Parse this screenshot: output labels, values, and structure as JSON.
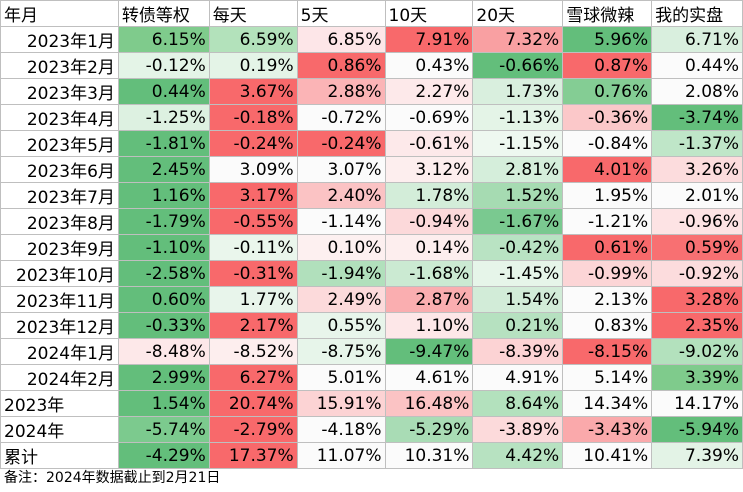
{
  "header": [
    "年月",
    "转债等权",
    "每天",
    "5天",
    "10天",
    "20天",
    "雪球微辣",
    "我的实盘"
  ],
  "rows": [
    {
      "label": "2023年1月",
      "align": "right",
      "cells": [
        {
          "v": "6.15%",
          "c": "#7fcb8c"
        },
        {
          "v": "6.59%",
          "c": "#b3e2bb"
        },
        {
          "v": "6.85%",
          "c": "#fde6e8"
        },
        {
          "v": "7.91%",
          "c": "#f8696b"
        },
        {
          "v": "7.32%",
          "c": "#f9a0a2"
        },
        {
          "v": "5.96%",
          "c": "#63be7b"
        },
        {
          "v": "6.71%",
          "c": "#d9efde"
        }
      ]
    },
    {
      "label": "2023年2月",
      "align": "right",
      "cells": [
        {
          "v": "-0.12%",
          "c": "#e4f4e7"
        },
        {
          "v": "0.19%",
          "c": "#e4f4e7"
        },
        {
          "v": "0.86%",
          "c": "#f8696b"
        },
        {
          "v": "0.43%",
          "c": "#fbfbfb"
        },
        {
          "v": "-0.66%",
          "c": "#63be7b"
        },
        {
          "v": "0.87%",
          "c": "#f8696b"
        },
        {
          "v": "0.44%",
          "c": "#fbfbfb"
        }
      ]
    },
    {
      "label": "2023年3月",
      "align": "right",
      "cells": [
        {
          "v": "0.44%",
          "c": "#63be7b"
        },
        {
          "v": "3.67%",
          "c": "#f8696b"
        },
        {
          "v": "2.88%",
          "c": "#fbb4b6"
        },
        {
          "v": "2.27%",
          "c": "#fde9ea"
        },
        {
          "v": "1.73%",
          "c": "#d9efde"
        },
        {
          "v": "0.76%",
          "c": "#84cd94"
        },
        {
          "v": "2.08%",
          "c": "#fbfbfb"
        }
      ]
    },
    {
      "label": "2023年4月",
      "align": "right",
      "cells": [
        {
          "v": "-1.25%",
          "c": "#ddf1e1"
        },
        {
          "v": "-0.18%",
          "c": "#f8696b"
        },
        {
          "v": "-0.72%",
          "c": "#fbfbfb"
        },
        {
          "v": "-0.69%",
          "c": "#fbfbfb"
        },
        {
          "v": "-1.13%",
          "c": "#e4f4e7"
        },
        {
          "v": "-0.36%",
          "c": "#fbc8c9"
        },
        {
          "v": "-3.74%",
          "c": "#63be7b"
        }
      ]
    },
    {
      "label": "2023年5月",
      "align": "right",
      "cells": [
        {
          "v": "-1.81%",
          "c": "#63be7b"
        },
        {
          "v": "-0.24%",
          "c": "#f8696b"
        },
        {
          "v": "-0.24%",
          "c": "#f8696b"
        },
        {
          "v": "-0.61%",
          "c": "#fde9ea"
        },
        {
          "v": "-1.15%",
          "c": "#eef8f0"
        },
        {
          "v": "-0.84%",
          "c": "#fbfbfb"
        },
        {
          "v": "-1.37%",
          "c": "#bfe6c8"
        }
      ]
    },
    {
      "label": "2023年6月",
      "align": "right",
      "cells": [
        {
          "v": "2.45%",
          "c": "#63be7b"
        },
        {
          "v": "3.09%",
          "c": "#fbfbfb"
        },
        {
          "v": "3.07%",
          "c": "#fbfbfb"
        },
        {
          "v": "3.12%",
          "c": "#fdeeee"
        },
        {
          "v": "2.81%",
          "c": "#d5eedb"
        },
        {
          "v": "4.01%",
          "c": "#f8696b"
        },
        {
          "v": "3.26%",
          "c": "#fcdcdd"
        }
      ]
    },
    {
      "label": "2023年7月",
      "align": "right",
      "cells": [
        {
          "v": "1.16%",
          "c": "#63be7b"
        },
        {
          "v": "3.17%",
          "c": "#f8696b"
        },
        {
          "v": "2.40%",
          "c": "#fbc3c4"
        },
        {
          "v": "1.78%",
          "c": "#d3edd9"
        },
        {
          "v": "1.52%",
          "c": "#a6dbb2"
        },
        {
          "v": "1.95%",
          "c": "#fbfbfb"
        },
        {
          "v": "2.01%",
          "c": "#fbfbfb"
        }
      ]
    },
    {
      "label": "2023年8月",
      "align": "right",
      "cells": [
        {
          "v": "-1.79%",
          "c": "#63be7b"
        },
        {
          "v": "-0.55%",
          "c": "#f8696b"
        },
        {
          "v": "-1.14%",
          "c": "#fbfbfb"
        },
        {
          "v": "-0.94%",
          "c": "#fcd9da"
        },
        {
          "v": "-1.67%",
          "c": "#7ac990"
        },
        {
          "v": "-1.21%",
          "c": "#fbfbfb"
        },
        {
          "v": "-0.96%",
          "c": "#fde3e4"
        }
      ]
    },
    {
      "label": "2023年9月",
      "align": "right",
      "cells": [
        {
          "v": "-1.10%",
          "c": "#63be7b"
        },
        {
          "v": "-0.11%",
          "c": "#eaf6ec"
        },
        {
          "v": "0.10%",
          "c": "#fdf0f0"
        },
        {
          "v": "0.14%",
          "c": "#fdeeee"
        },
        {
          "v": "-0.42%",
          "c": "#b9e3c3"
        },
        {
          "v": "0.61%",
          "c": "#f8696b"
        },
        {
          "v": "0.59%",
          "c": "#f87072"
        }
      ]
    },
    {
      "label": "2023年10月",
      "align": "right",
      "cells": [
        {
          "v": "-2.58%",
          "c": "#63be7b"
        },
        {
          "v": "-0.31%",
          "c": "#f8696b"
        },
        {
          "v": "-1.94%",
          "c": "#b1e0bc"
        },
        {
          "v": "-1.68%",
          "c": "#cbead2"
        },
        {
          "v": "-1.45%",
          "c": "#e6f5e9"
        },
        {
          "v": "-0.99%",
          "c": "#fcd5d6"
        },
        {
          "v": "-0.92%",
          "c": "#fcdcdd"
        }
      ]
    },
    {
      "label": "2023年11月",
      "align": "right",
      "cells": [
        {
          "v": "0.60%",
          "c": "#63be7b"
        },
        {
          "v": "1.77%",
          "c": "#e8f5eb"
        },
        {
          "v": "2.49%",
          "c": "#fcdadb"
        },
        {
          "v": "2.87%",
          "c": "#faaeb0"
        },
        {
          "v": "1.54%",
          "c": "#d2ecd8"
        },
        {
          "v": "2.13%",
          "c": "#fbfbfb"
        },
        {
          "v": "3.28%",
          "c": "#f8696b"
        }
      ]
    },
    {
      "label": "2023年12月",
      "align": "right",
      "cells": [
        {
          "v": "-0.33%",
          "c": "#63be7b"
        },
        {
          "v": "2.17%",
          "c": "#f8696b"
        },
        {
          "v": "0.55%",
          "c": "#e8f5eb"
        },
        {
          "v": "1.10%",
          "c": "#fde7e8"
        },
        {
          "v": "0.21%",
          "c": "#b6e1c0"
        },
        {
          "v": "0.83%",
          "c": "#fbfbfb"
        },
        {
          "v": "2.35%",
          "c": "#f8696b"
        }
      ]
    },
    {
      "label": "2024年1月",
      "align": "right",
      "cells": [
        {
          "v": "-8.48%",
          "c": "#fde8e9"
        },
        {
          "v": "-8.52%",
          "c": "#fdeeee"
        },
        {
          "v": "-8.75%",
          "c": "#e7f5ea"
        },
        {
          "v": "-9.47%",
          "c": "#63be7b"
        },
        {
          "v": "-8.39%",
          "c": "#fcd3d4"
        },
        {
          "v": "-8.15%",
          "c": "#f8696b"
        },
        {
          "v": "-9.02%",
          "c": "#b3e1bd"
        }
      ]
    },
    {
      "label": "2024年2月",
      "align": "right",
      "cells": [
        {
          "v": "2.99%",
          "c": "#63be7b"
        },
        {
          "v": "6.27%",
          "c": "#f8696b"
        },
        {
          "v": "5.01%",
          "c": "#fbfbfb"
        },
        {
          "v": "4.61%",
          "c": "#fbfbfb"
        },
        {
          "v": "4.91%",
          "c": "#fbfbfb"
        },
        {
          "v": "5.14%",
          "c": "#fbfbfb"
        },
        {
          "v": "3.39%",
          "c": "#7fcb8c"
        }
      ]
    },
    {
      "label": "2023年",
      "align": "left",
      "cells": [
        {
          "v": "1.54%",
          "c": "#63be7b"
        },
        {
          "v": "20.74%",
          "c": "#f8696b"
        },
        {
          "v": "15.91%",
          "c": "#fcd3d4"
        },
        {
          "v": "16.48%",
          "c": "#fbc3c4"
        },
        {
          "v": "8.64%",
          "c": "#b3e1bd"
        },
        {
          "v": "14.34%",
          "c": "#fbfbfb"
        },
        {
          "v": "14.17%",
          "c": "#fbfbfb"
        }
      ]
    },
    {
      "label": "2024年",
      "align": "left",
      "cells": [
        {
          "v": "-5.74%",
          "c": "#7cca8e"
        },
        {
          "v": "-2.79%",
          "c": "#f8696b"
        },
        {
          "v": "-4.18%",
          "c": "#fbfbfb"
        },
        {
          "v": "-5.29%",
          "c": "#a9dcb5"
        },
        {
          "v": "-3.89%",
          "c": "#fcdadb"
        },
        {
          "v": "-3.43%",
          "c": "#faa9ab"
        },
        {
          "v": "-5.94%",
          "c": "#63be7b"
        }
      ]
    },
    {
      "label": "累计",
      "align": "left",
      "cells": [
        {
          "v": "-4.29%",
          "c": "#63be7b"
        },
        {
          "v": "17.37%",
          "c": "#f8696b"
        },
        {
          "v": "11.07%",
          "c": "#fbfbfb"
        },
        {
          "v": "10.31%",
          "c": "#fbfbfb"
        },
        {
          "v": "4.42%",
          "c": "#b7e2c1"
        },
        {
          "v": "10.41%",
          "c": "#fbfbfb"
        },
        {
          "v": "7.39%",
          "c": "#e3f3e6"
        }
      ]
    }
  ],
  "note": "备注：2024年数据截止到2月21日"
}
